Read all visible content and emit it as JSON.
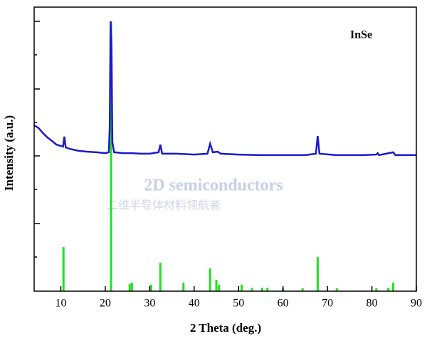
{
  "chart_data": {
    "type": "line",
    "annotation": "InSe",
    "xlabel": "2 Theta (deg.)",
    "ylabel": "Intensity (a.u.)",
    "xlim": [
      4,
      90
    ],
    "ylim": [
      0,
      100
    ],
    "xticks": [
      10,
      20,
      30,
      40,
      50,
      60,
      70,
      80,
      90
    ],
    "series": [
      {
        "type": "line",
        "color": "#1a1acc",
        "x": [
          4,
          5,
          6,
          7,
          8,
          9,
          10,
          10.5,
          10.8,
          11.1,
          12,
          14,
          16,
          18,
          20,
          20.8,
          21.0,
          21.2,
          21.4,
          21.6,
          22,
          24,
          26,
          28,
          30,
          32,
          32.4,
          32.8,
          36,
          40,
          43,
          43.6,
          44.2,
          45.3,
          46,
          50,
          55,
          60,
          65,
          67.4,
          67.8,
          68.2,
          72,
          78,
          81,
          81.3,
          81.6,
          84.8,
          85.3,
          90
        ],
        "values": [
          58.4,
          57.4,
          55.6,
          54.1,
          52.9,
          51.6,
          51.1,
          50.9,
          54.4,
          50.6,
          50.1,
          49.4,
          49.1,
          48.9,
          48.6,
          48.9,
          57.4,
          95,
          87.5,
          52.4,
          48.9,
          48.6,
          48.6,
          48.4,
          48.4,
          48.9,
          51.6,
          48.4,
          48.4,
          48.1,
          48.4,
          51.9,
          48.9,
          49.1,
          48.4,
          48.1,
          47.9,
          47.9,
          47.9,
          48.4,
          54.6,
          48.4,
          47.9,
          47.9,
          48.1,
          48.6,
          47.9,
          48.9,
          47.9,
          47.9
        ]
      },
      {
        "type": "stem",
        "color": "#22e022",
        "x": [
          10.6,
          21.3,
          25.5,
          26.0,
          30.3,
          32.4,
          37.6,
          43.6,
          45.0,
          45.6,
          50.7,
          53.0,
          55.3,
          56.5,
          60.0,
          64.4,
          67.8,
          72.1,
          81.0,
          83.7,
          84.8
        ],
        "values": [
          15.5,
          95,
          2.5,
          3,
          2.3,
          10,
          3,
          8,
          4,
          2.3,
          2.3,
          1.2,
          1.2,
          1.2,
          1,
          1,
          12,
          1,
          1,
          1.2,
          3
        ]
      }
    ]
  },
  "watermark": [
    "2D semiconductors",
    "二维半导体材料领航者"
  ]
}
